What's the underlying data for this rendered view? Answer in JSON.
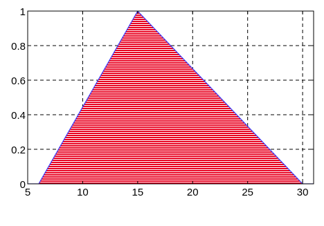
{
  "chart_data": {
    "type": "area",
    "x": [
      5,
      6,
      15,
      30,
      31
    ],
    "y": [
      0,
      0,
      1,
      0,
      0
    ],
    "xlim": [
      5,
      31
    ],
    "ylim": [
      0,
      1
    ],
    "xticks": [
      5,
      10,
      15,
      20,
      25,
      30
    ],
    "yticks": [
      0,
      0.2,
      0.4,
      0.6,
      0.8,
      1
    ],
    "xtick_labels": [
      "5",
      "10",
      "15",
      "20",
      "25",
      "30"
    ],
    "ytick_labels": [
      "0",
      "0.2",
      "0.4",
      "0.6",
      "0.8",
      "1"
    ],
    "grid": true,
    "grid_style": "dashed",
    "fill_pattern": "horizontal-stripes",
    "colors": {
      "fill": "#e8001f",
      "stripe": "#ffffff",
      "line": "#3b3bff",
      "axes": "#000000",
      "grid": "#000000"
    }
  }
}
